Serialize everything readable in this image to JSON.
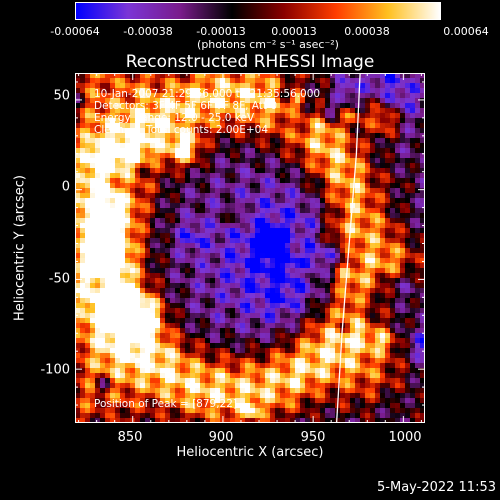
{
  "colorbar": {
    "ticks": [
      "-0.00064",
      "-0.00038",
      "-0.00013",
      "0.00013",
      "0.00038",
      "0.00064"
    ],
    "unit_label": "(photons cm⁻² s⁻¹ asec⁻²)",
    "range": [
      -0.00064,
      0.00064
    ],
    "colors": [
      "#0000ff",
      "#7b35d6",
      "#7a1c8c",
      "#000000",
      "#8a0000",
      "#ff3d00",
      "#ffc020",
      "#ffffff"
    ]
  },
  "chart_data": {
    "type": "heatmap",
    "title": "Reconstructed RHESSI Image",
    "xlabel": "Heliocentric X (arcsec)",
    "ylabel": "Heliocentric Y (arcsec)",
    "xlim": [
      818,
      1012
    ],
    "ylim": [
      -130,
      65
    ],
    "x_ticks": [
      "850",
      "900",
      "950",
      "1000"
    ],
    "x_tick_values": [
      850,
      900,
      950,
      1000
    ],
    "y_ticks": [
      "50",
      "0",
      "-50",
      "-100"
    ],
    "y_tick_values": [
      50,
      0,
      -50,
      -100
    ],
    "annotations": {
      "time_range": "10-Jan-2007 21:29:56.000 to 21:35:56.000",
      "detectors": "Detectors: 3F 4F 5F 6F 7F 8F, Att 0",
      "energy": "Energy Range: 12.0 - 25.0 keV",
      "method": "Clean",
      "total_counts": "Total counts: 2.00E+04",
      "peak": "Position of Peak = [879,22]"
    },
    "peak_position": [
      879,
      22
    ],
    "limb_curve": [
      [
        976,
        65
      ],
      [
        974,
        20
      ],
      [
        970,
        -30
      ],
      [
        966,
        -80
      ],
      [
        963,
        -130
      ]
    ]
  },
  "footer": {
    "timestamp": "5-May-2022 11:53"
  }
}
